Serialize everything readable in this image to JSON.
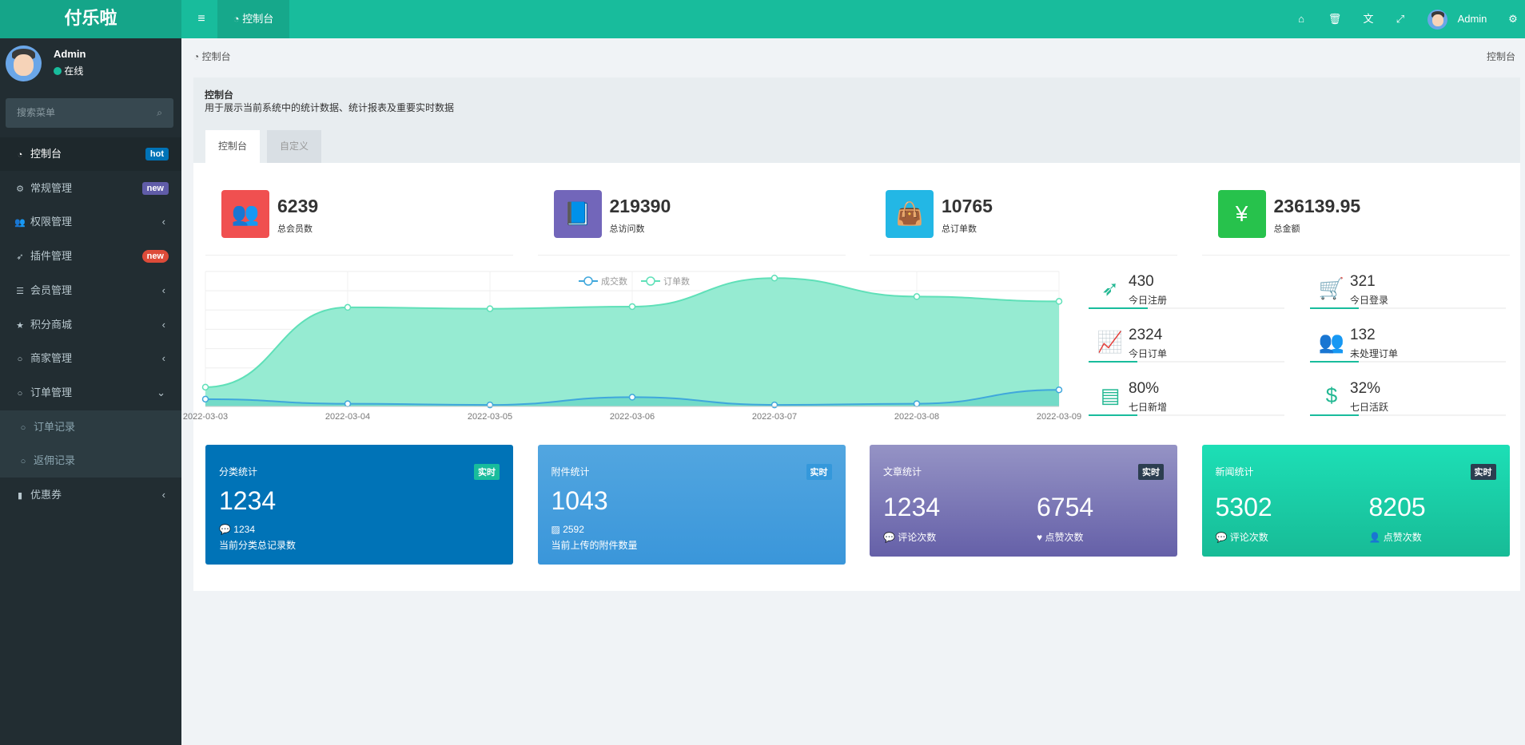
{
  "app": {
    "title": "付乐啦"
  },
  "header": {
    "nav_tab": "控制台",
    "user": "Admin",
    "icons": [
      "home-icon",
      "trash-icon",
      "translate-icon",
      "fullscreen-icon",
      "cogs-icon"
    ]
  },
  "sidebar": {
    "user": {
      "name": "Admin",
      "status": "在线",
      "status_color": "#18bc9c"
    },
    "search_placeholder": "搜索菜单",
    "items": [
      {
        "label": "控制台",
        "icon": "dashboard-icon",
        "badge": "hot",
        "badge_color": "#0073b7",
        "active": true
      },
      {
        "label": "常规管理",
        "icon": "cogs-icon",
        "badge": "new",
        "badge_color": "#605ca8"
      },
      {
        "label": "权限管理",
        "icon": "users-icon",
        "arrow": "‹"
      },
      {
        "label": "插件管理",
        "icon": "rocket-icon",
        "badge": "new",
        "badge_color": "#dd4b39"
      },
      {
        "label": "会员管理",
        "icon": "list-icon",
        "arrow": "‹"
      },
      {
        "label": "积分商城",
        "icon": "star-icon",
        "arrow": "‹"
      },
      {
        "label": "商家管理",
        "icon": "circle-icon",
        "arrow": "‹"
      },
      {
        "label": "订单管理",
        "icon": "circle-icon",
        "arrow": "⌄",
        "expanded": true
      },
      {
        "label": "订单记录",
        "icon": "circle-icon",
        "sub": true
      },
      {
        "label": "返佣记录",
        "icon": "circle-icon",
        "sub": true
      },
      {
        "label": "优惠券",
        "icon": "bookmark-icon",
        "arrow": "‹"
      }
    ]
  },
  "breadcrumb": {
    "left": "控制台",
    "right": "控制台"
  },
  "panel": {
    "title": "控制台",
    "desc": "用于展示当前系统中的统计数据、统计报表及重要实时数据",
    "tabs": [
      "控制台",
      "自定义"
    ]
  },
  "stat_cards": [
    {
      "value": "6239",
      "label": "总会员数",
      "color": "#f05050",
      "icon": "users-icon"
    },
    {
      "value": "219390",
      "label": "总访问数",
      "color": "#7266ba",
      "icon": "book-icon"
    },
    {
      "value": "10765",
      "label": "总订单数",
      "color": "#23b7e5",
      "icon": "shopping-bag-icon"
    },
    {
      "value": "236139.95",
      "label": "总金额",
      "color": "#27c24c",
      "icon": "yen-icon"
    }
  ],
  "right_stats": [
    {
      "value": "430",
      "label": "今日注册",
      "icon": "rocket-icon",
      "progress": 30
    },
    {
      "value": "321",
      "label": "今日登录",
      "icon": "cart-icon",
      "progress": 25
    },
    {
      "value": "2324",
      "label": "今日订单",
      "icon": "line-chart-icon",
      "progress": 25
    },
    {
      "value": "132",
      "label": "未处理订单",
      "icon": "users-icon",
      "progress": 25
    },
    {
      "value": "80%",
      "label": "七日新增",
      "icon": "list-alt-icon",
      "progress": 25
    },
    {
      "value": "32%",
      "label": "七日活跃",
      "icon": "dollar-icon",
      "progress": 25
    }
  ],
  "chart_data": {
    "type": "area",
    "x": [
      "2022-03-03",
      "2022-03-04",
      "2022-03-05",
      "2022-03-06",
      "2022-03-07",
      "2022-03-08",
      "2022-03-09"
    ],
    "series": [
      {
        "name": "成交数",
        "color": "#3fa7dc",
        "values": [
          38,
          14,
          8,
          48,
          8,
          14,
          86
        ]
      },
      {
        "name": "订单数",
        "color": "#5fe0b8",
        "values": [
          100,
          514,
          507,
          518,
          666,
          570,
          545
        ]
      }
    ],
    "ylim": [
      0,
      700
    ],
    "grid": true,
    "legend": "top-center",
    "smooth": true
  },
  "bottom_cards": [
    {
      "title": "分类统计",
      "tag": "实时",
      "value": "1234",
      "sub_value": "1234",
      "desc": "当前分类总记录数",
      "color": "#0073b7",
      "tag_color": "#18bc9c"
    },
    {
      "title": "附件统计",
      "tag": "实时",
      "value": "1043",
      "sub_value": "2592",
      "desc": "当前上传的附件数量",
      "color": "#4aa3df",
      "tag_color": "#3498db"
    },
    {
      "title": "文章统计",
      "tag": "实时",
      "values": [
        "1234",
        "6754"
      ],
      "labels": [
        "评论次数",
        "点赞次数"
      ],
      "color": "#7a6fb5",
      "tag_color": "#2c3e50"
    },
    {
      "title": "新闻统计",
      "tag": "实时",
      "values": [
        "5302",
        "8205"
      ],
      "labels": [
        "评论次数",
        "点赞次数"
      ],
      "color": "#1ccfa8",
      "tag_color": "#2c3e50"
    }
  ]
}
